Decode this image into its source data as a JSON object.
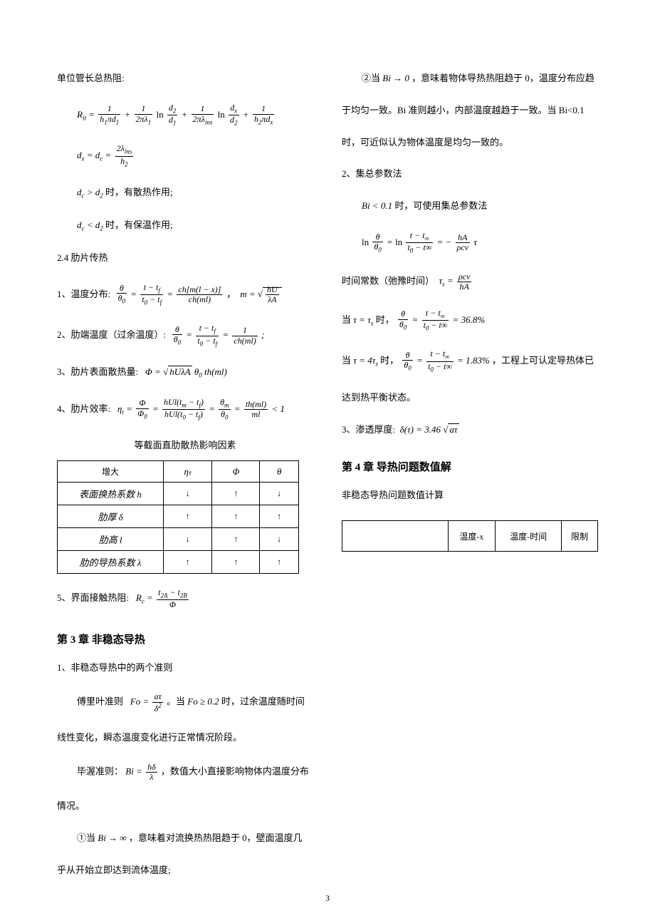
{
  "left": {
    "title1": "单位管长总热阻:",
    "dc_gt_d2": "时，有散热作用;",
    "dc_lt_d2": "时，有保温作用;",
    "sec24": "2.4 肋片传热",
    "item1": "1、温度分布:",
    "item2": "2、肋端温度（过余温度）:",
    "item3": "3、肋片表面散热量:",
    "item4": "4、肋片效率:",
    "tableTitle": "等截面直肋散热影响因素",
    "tbl": {
      "head": [
        "增大",
        "ηₜ",
        "Φ",
        "θ"
      ],
      "rows": [
        [
          "表面换热系数 h",
          "↓",
          "↑",
          "↓"
        ],
        [
          "肋厚 δ",
          "↑",
          "↑",
          "↑"
        ],
        [
          "肋高 l",
          "↓",
          "↑",
          "↓"
        ],
        [
          "肋的导热系数 λ",
          "↑",
          "↑",
          "↑"
        ]
      ]
    },
    "item5": "5、界面接触热阻:",
    "ch3": "第 3 章 非稳态导热",
    "ch3_1": "1、非稳态导热中的两个准则",
    "fourier1": "傅里叶准则",
    "fourier2": "。当",
    "fourier3": "时，过余温度随时间"
  },
  "right": {
    "r1": "线性变化，瞬态温度变化进行正常情况阶段。",
    "biot1": "毕渥准则：",
    "biot2": "，数值大小直接影响物体内温度分布",
    "r2": "情况。",
    "r3a": "①当",
    "r3b": "，意味着对流换热热阻趋于 0，壁面温度几",
    "r4": "乎从开始立即达到流体温度;",
    "r5a": "②当",
    "r5b": "，意味着物体导热热阻趋于 0，温度分布应趋",
    "r6": "于均匀一致。Bi 准则越小，内部温度越趋于一致。当 Bi<0.1",
    "r7": "时，可近似认为物体温度是均匀一致的。",
    "sec2": "2、集总参数法",
    "r8": "时，可使用集总参数法",
    "time1": "时间常数（弛豫时间）",
    "tau1a": "当",
    "tau1b": "时，",
    "tau2a": "当",
    "tau2b": "时，",
    "tau2c": "，工程上可认定导热体已",
    "r9": "达到热平衡状态。",
    "sec3": "3、渗透厚度:",
    "ch4": "第 4 章 导热问题数值解",
    "ch4_1": "非稳态导热问题数值计算",
    "tbl4": [
      "",
      "温度-x",
      "温度-时间",
      "限制"
    ]
  },
  "pagenum": "3"
}
